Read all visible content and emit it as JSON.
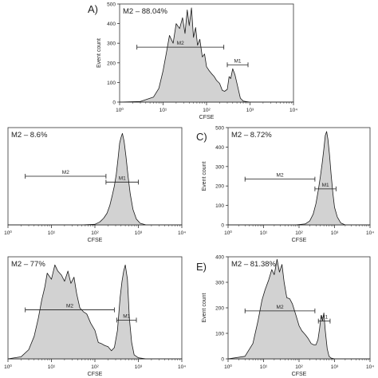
{
  "colors": {
    "fill": "#d2d2d2",
    "line": "#1a1a1a",
    "axis": "#333333"
  },
  "chart_data": [
    {
      "type": "area",
      "panel_label": "A)",
      "annotation": "M2 – 88.04%",
      "xlabel": "CFSE",
      "ylabel": "Event count",
      "xscale": "log",
      "xlim": [
        1,
        10000
      ],
      "ylim": [
        0,
        500
      ],
      "yticks": [
        "0",
        "100",
        "200",
        "300",
        "400",
        "500"
      ],
      "xticks": [
        "10⁰",
        "10¹",
        "10²",
        "10³",
        "10⁴"
      ],
      "gates": [
        {
          "name": "M2",
          "from": 2.5,
          "to": 250
        },
        {
          "name": "M1",
          "from": 300,
          "to": 900
        }
      ],
      "series": [
        {
          "x": [
            1,
            3,
            6,
            8,
            10,
            12,
            14,
            17,
            20,
            24,
            28,
            32,
            36,
            40,
            45,
            50,
            56,
            62,
            70,
            80,
            90,
            100,
            115,
            130,
            150,
            170,
            200,
            230,
            260,
            300,
            330,
            360,
            400,
            450,
            520,
            600,
            700,
            850,
            1000,
            10000
          ],
          "y": [
            0,
            3,
            25,
            70,
            160,
            255,
            340,
            300,
            400,
            375,
            430,
            350,
            470,
            390,
            480,
            330,
            380,
            290,
            320,
            230,
            245,
            180,
            160,
            145,
            130,
            110,
            95,
            60,
            55,
            65,
            130,
            120,
            170,
            140,
            80,
            20,
            5,
            2,
            0,
            0
          ]
        }
      ]
    },
    {
      "type": "area",
      "panel_label": "",
      "annotation": "M2 – 8.6%",
      "xlabel": "CFSE",
      "ylabel": "",
      "xscale": "log",
      "xlim": [
        1,
        10000
      ],
      "ylim": [
        0,
        500
      ],
      "yticks": [],
      "xticks": [
        "10⁰",
        "10¹",
        "10²",
        "10³",
        "10⁴"
      ],
      "gates": [
        {
          "name": "M2",
          "from": 2.5,
          "to": 180
        },
        {
          "name": "M1",
          "from": 180,
          "to": 1000
        }
      ],
      "series": [
        {
          "x": [
            1,
            10,
            50,
            100,
            130,
            160,
            190,
            220,
            250,
            280,
            310,
            340,
            370,
            400,
            430,
            470,
            520,
            580,
            650,
            750,
            900,
            1100,
            1500,
            10000
          ],
          "y": [
            0,
            0,
            0,
            3,
            15,
            35,
            60,
            100,
            150,
            200,
            260,
            340,
            420,
            450,
            470,
            430,
            350,
            250,
            160,
            80,
            30,
            8,
            0,
            0
          ]
        }
      ]
    },
    {
      "type": "area",
      "panel_label": "C)",
      "annotation": "M2 – 8.72%",
      "xlabel": "CFSE",
      "ylabel": "Event count",
      "xscale": "log",
      "xlim": [
        1,
        10000
      ],
      "ylim": [
        0,
        500
      ],
      "yticks": [
        "0",
        "100",
        "200",
        "300",
        "400",
        "500"
      ],
      "xticks": [
        "10⁰",
        "10¹",
        "10²",
        "10³",
        "10⁴"
      ],
      "gates": [
        {
          "name": "M2",
          "from": 3,
          "to": 280
        },
        {
          "name": "M1",
          "from": 280,
          "to": 1100
        }
      ],
      "series": [
        {
          "x": [
            1,
            10,
            80,
            150,
            200,
            250,
            300,
            350,
            400,
            450,
            500,
            550,
            600,
            650,
            720,
            800,
            900,
            1000,
            1200,
            1500,
            2000,
            10000
          ],
          "y": [
            0,
            0,
            0,
            5,
            20,
            55,
            110,
            180,
            250,
            320,
            390,
            460,
            480,
            440,
            360,
            260,
            160,
            90,
            40,
            10,
            0,
            0
          ]
        }
      ]
    },
    {
      "type": "area",
      "panel_label": "",
      "annotation": "M2 – 77%",
      "xlabel": "CFSE",
      "ylabel": "",
      "xscale": "log",
      "xlim": [
        1,
        10000
      ],
      "ylim": [
        0,
        500
      ],
      "yticks": [],
      "xticks": [
        "10⁰",
        "10¹",
        "10²",
        "10³",
        "10⁴"
      ],
      "gates": [
        {
          "name": "M2",
          "from": 2.5,
          "to": 280
        },
        {
          "name": "M1",
          "from": 320,
          "to": 900
        }
      ],
      "series": [
        {
          "x": [
            1,
            2,
            3,
            4,
            5,
            6,
            7,
            8,
            10,
            12,
            14,
            17,
            20,
            24,
            28,
            33,
            38,
            45,
            55,
            65,
            80,
            100,
            120,
            140,
            170,
            200,
            240,
            280,
            330,
            380,
            420,
            460,
            500,
            560,
            620,
            700,
            800,
            1000,
            1500,
            10000
          ],
          "y": [
            0,
            10,
            45,
            110,
            200,
            290,
            350,
            420,
            390,
            460,
            430,
            410,
            380,
            430,
            370,
            400,
            320,
            250,
            230,
            220,
            175,
            140,
            80,
            75,
            65,
            60,
            40,
            55,
            140,
            300,
            380,
            430,
            460,
            390,
            200,
            80,
            20,
            5,
            0,
            0
          ]
        }
      ]
    },
    {
      "type": "area",
      "panel_label": "E)",
      "annotation": "M2 – 81.38%",
      "xlabel": "CFSE",
      "ylabel": "Event count",
      "xscale": "log",
      "xlim": [
        1,
        10000
      ],
      "ylim": [
        0,
        400
      ],
      "yticks": [
        "0",
        "100",
        "200",
        "300",
        "400"
      ],
      "xticks": [
        "10⁰",
        "10¹",
        "10²",
        "10³",
        "10⁴"
      ],
      "gates": [
        {
          "name": "M2",
          "from": 3,
          "to": 280
        },
        {
          "name": "M1",
          "from": 350,
          "to": 750
        }
      ],
      "series": [
        {
          "x": [
            1,
            3,
            5,
            7,
            9,
            11,
            14,
            17,
            20,
            24,
            28,
            33,
            38,
            45,
            55,
            65,
            80,
            100,
            120,
            150,
            180,
            220,
            260,
            300,
            340,
            380,
            420,
            460,
            500,
            550,
            620,
            700,
            800,
            1000,
            10000
          ],
          "y": [
            0,
            10,
            60,
            150,
            230,
            270,
            310,
            350,
            330,
            390,
            340,
            370,
            300,
            240,
            235,
            215,
            175,
            130,
            110,
            95,
            80,
            60,
            55,
            55,
            75,
            120,
            170,
            150,
            180,
            110,
            40,
            10,
            3,
            0,
            0
          ]
        }
      ]
    }
  ]
}
